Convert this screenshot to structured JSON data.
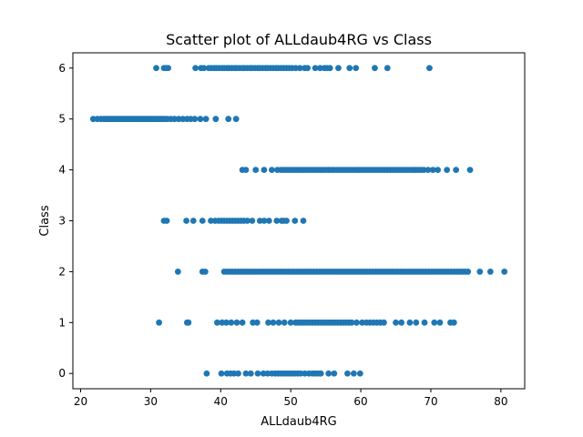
{
  "chart_data": {
    "type": "scatter",
    "title": "Scatter plot of ALLdaub4RG vs Class",
    "xlabel": "ALLdaub4RG",
    "ylabel": "Class",
    "xlim": [
      18.9,
      83.4
    ],
    "ylim": [
      -0.3,
      6.3
    ],
    "xticks": [
      20,
      30,
      40,
      50,
      60,
      70,
      80
    ],
    "yticks": [
      0,
      1,
      2,
      3,
      4,
      5,
      6
    ],
    "grid": false,
    "legend": "none",
    "marker_color": "#1f77b4",
    "series": [
      {
        "y": 6,
        "x": [
          30.8,
          31.9,
          32.2,
          32.5,
          36.4,
          37.2,
          37.6,
          38.3,
          38.7,
          39.1,
          39.4,
          39.8,
          40.2,
          40.5,
          40.9,
          41.2,
          41.6,
          42.0,
          42.3,
          42.7,
          43.1,
          43.4,
          43.8,
          44.2,
          44.5,
          44.9,
          45.3,
          45.6,
          46.0,
          46.4,
          46.7,
          47.1,
          47.5,
          47.9,
          48.2,
          48.6,
          49.0,
          49.4,
          49.8,
          50.2,
          50.7,
          51.3,
          52.0,
          52.4,
          53.5,
          54.2,
          54.8,
          55.2,
          55.6,
          56.8,
          58.4,
          59.3,
          62.0,
          63.8,
          69.8
        ]
      },
      {
        "y": 5,
        "x": [
          21.8,
          22.4,
          22.9,
          23.3,
          23.6,
          23.9,
          24.2,
          24.5,
          24.8,
          25.1,
          25.4,
          25.7,
          26.0,
          26.3,
          26.6,
          26.9,
          27.2,
          27.5,
          27.8,
          28.1,
          28.4,
          28.7,
          29.0,
          29.3,
          29.6,
          29.9,
          30.2,
          30.5,
          30.8,
          31.1,
          31.4,
          31.7,
          32.0,
          32.4,
          32.9,
          33.4,
          34.0,
          34.6,
          35.2,
          35.7,
          36.3,
          37.1,
          37.9,
          39.3,
          41.1,
          42.2
        ]
      },
      {
        "y": 4,
        "x": [
          43.1,
          43.6,
          45.0,
          46.2,
          47.3,
          48.1,
          48.6,
          49.0,
          49.4,
          49.8,
          50.2,
          50.6,
          51.0,
          51.4,
          51.8,
          52.2,
          52.6,
          53.0,
          53.4,
          53.8,
          54.2,
          54.6,
          55.0,
          55.4,
          55.8,
          56.2,
          56.6,
          57.0,
          57.4,
          57.8,
          58.2,
          58.6,
          59.0,
          59.4,
          59.8,
          60.2,
          60.6,
          61.0,
          61.4,
          61.8,
          62.2,
          62.6,
          63.0,
          63.4,
          63.8,
          64.2,
          64.6,
          65.0,
          65.4,
          65.8,
          66.2,
          66.6,
          67.0,
          67.4,
          67.8,
          68.2,
          68.6,
          69.0,
          69.6,
          70.3,
          71.0,
          72.3,
          73.6,
          75.6
        ]
      },
      {
        "y": 3,
        "x": [
          31.9,
          32.3,
          35.1,
          36.1,
          37.4,
          38.6,
          39.2,
          39.7,
          40.1,
          40.5,
          40.9,
          41.3,
          41.7,
          42.1,
          42.5,
          42.9,
          43.3,
          43.8,
          44.5,
          45.6,
          46.2,
          46.9,
          48.0,
          48.7,
          49.0,
          49.4,
          50.6,
          51.8
        ]
      },
      {
        "y": 2,
        "x": [
          33.9,
          37.4,
          37.8,
          40.5,
          40.9,
          41.3,
          41.7,
          42.1,
          42.5,
          42.9,
          43.3,
          43.7,
          44.1,
          44.5,
          44.9,
          45.3,
          45.7,
          46.1,
          46.5,
          46.9,
          47.3,
          47.7,
          48.1,
          48.5,
          48.9,
          49.3,
          49.7,
          50.1,
          50.5,
          50.9,
          51.3,
          51.7,
          52.1,
          52.5,
          52.9,
          53.3,
          53.7,
          54.1,
          54.5,
          54.9,
          55.3,
          55.7,
          56.1,
          56.5,
          56.9,
          57.3,
          57.7,
          58.1,
          58.5,
          58.9,
          59.3,
          59.7,
          60.1,
          60.5,
          60.9,
          61.3,
          61.7,
          62.1,
          62.5,
          62.9,
          63.3,
          63.7,
          64.1,
          64.5,
          64.9,
          65.3,
          65.7,
          66.1,
          66.5,
          66.9,
          67.3,
          67.7,
          68.1,
          68.5,
          68.9,
          69.3,
          69.7,
          70.1,
          70.5,
          70.9,
          71.3,
          71.7,
          72.1,
          72.5,
          72.9,
          73.3,
          73.7,
          74.1,
          74.5,
          74.9,
          75.3,
          77.0,
          78.5,
          80.5
        ]
      },
      {
        "y": 1,
        "x": [
          31.2,
          35.2,
          35.4,
          39.5,
          40.2,
          40.8,
          41.5,
          42.3,
          43.1,
          44.6,
          45.2,
          46.8,
          47.5,
          48.3,
          49.1,
          50.0,
          50.7,
          51.1,
          51.5,
          51.9,
          52.3,
          52.7,
          53.1,
          53.5,
          53.9,
          54.3,
          54.7,
          55.1,
          55.5,
          55.9,
          56.3,
          56.7,
          57.1,
          57.5,
          57.9,
          58.3,
          58.7,
          59.4,
          60.2,
          60.8,
          61.3,
          61.8,
          62.3,
          62.8,
          63.3,
          65.0,
          65.8,
          67.0,
          67.9,
          69.1,
          70.5,
          71.3,
          72.8,
          73.3
        ]
      },
      {
        "y": 0,
        "x": [
          38.0,
          40.1,
          40.9,
          41.4,
          41.9,
          42.5,
          43.6,
          44.3,
          45.3,
          46.1,
          46.7,
          47.3,
          47.8,
          48.2,
          48.6,
          49.0,
          49.4,
          49.8,
          50.2,
          50.6,
          51.0,
          51.4,
          52.0,
          52.6,
          53.1,
          53.5,
          53.9,
          54.3,
          55.4,
          56.2,
          58.1,
          59.0,
          59.9
        ]
      }
    ]
  }
}
